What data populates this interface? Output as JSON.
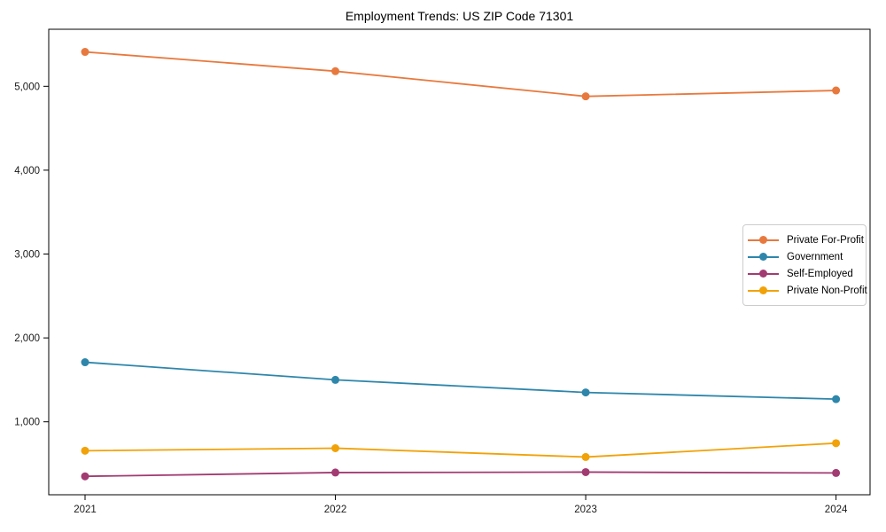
{
  "chart_data": {
    "type": "line",
    "title": "Employment Trends: US ZIP Code 71301",
    "xlabel": "",
    "ylabel": "",
    "categories": [
      "2021",
      "2022",
      "2023",
      "2024"
    ],
    "series": [
      {
        "name": "Private For-Profit",
        "color": "#E8793E",
        "values": [
          5410,
          5180,
          4880,
          4950
        ]
      },
      {
        "name": "Government",
        "color": "#2E86AB",
        "values": [
          1710,
          1500,
          1350,
          1270
        ]
      },
      {
        "name": "Self-Employed",
        "color": "#A23B72",
        "values": [
          350,
          395,
          400,
          390
        ]
      },
      {
        "name": "Private Non-Profit",
        "color": "#F1A208",
        "values": [
          655,
          685,
          580,
          745
        ]
      }
    ],
    "y_ticks": [
      1000,
      2000,
      3000,
      4000,
      5000
    ],
    "y_tick_labels": [
      "1,000",
      "2,000",
      "3,000",
      "4,000",
      "5,000"
    ],
    "ylim": [
      130,
      5680
    ],
    "grid": false,
    "legend_position": "center-right",
    "marker": "circle",
    "axis_color": "#000000"
  }
}
